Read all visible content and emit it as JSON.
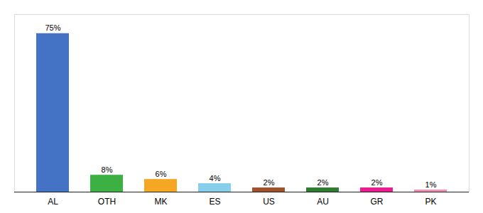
{
  "chart_data": {
    "type": "bar",
    "categories": [
      "AL",
      "OTH",
      "MK",
      "ES",
      "US",
      "AU",
      "GR",
      "PK"
    ],
    "values": [
      75,
      8,
      6,
      4,
      2,
      2,
      2,
      1
    ],
    "value_labels": [
      "75%",
      "8%",
      "6%",
      "4%",
      "2%",
      "2%",
      "2%",
      "1%"
    ],
    "colors": [
      "#4472c4",
      "#3cb043",
      "#f5a623",
      "#87ceeb",
      "#a0522d",
      "#2e7d32",
      "#e91e8c",
      "#f48fb1"
    ],
    "ylim": [
      0,
      84
    ],
    "data_labels": true,
    "tick_labels": "x",
    "grid": false
  }
}
